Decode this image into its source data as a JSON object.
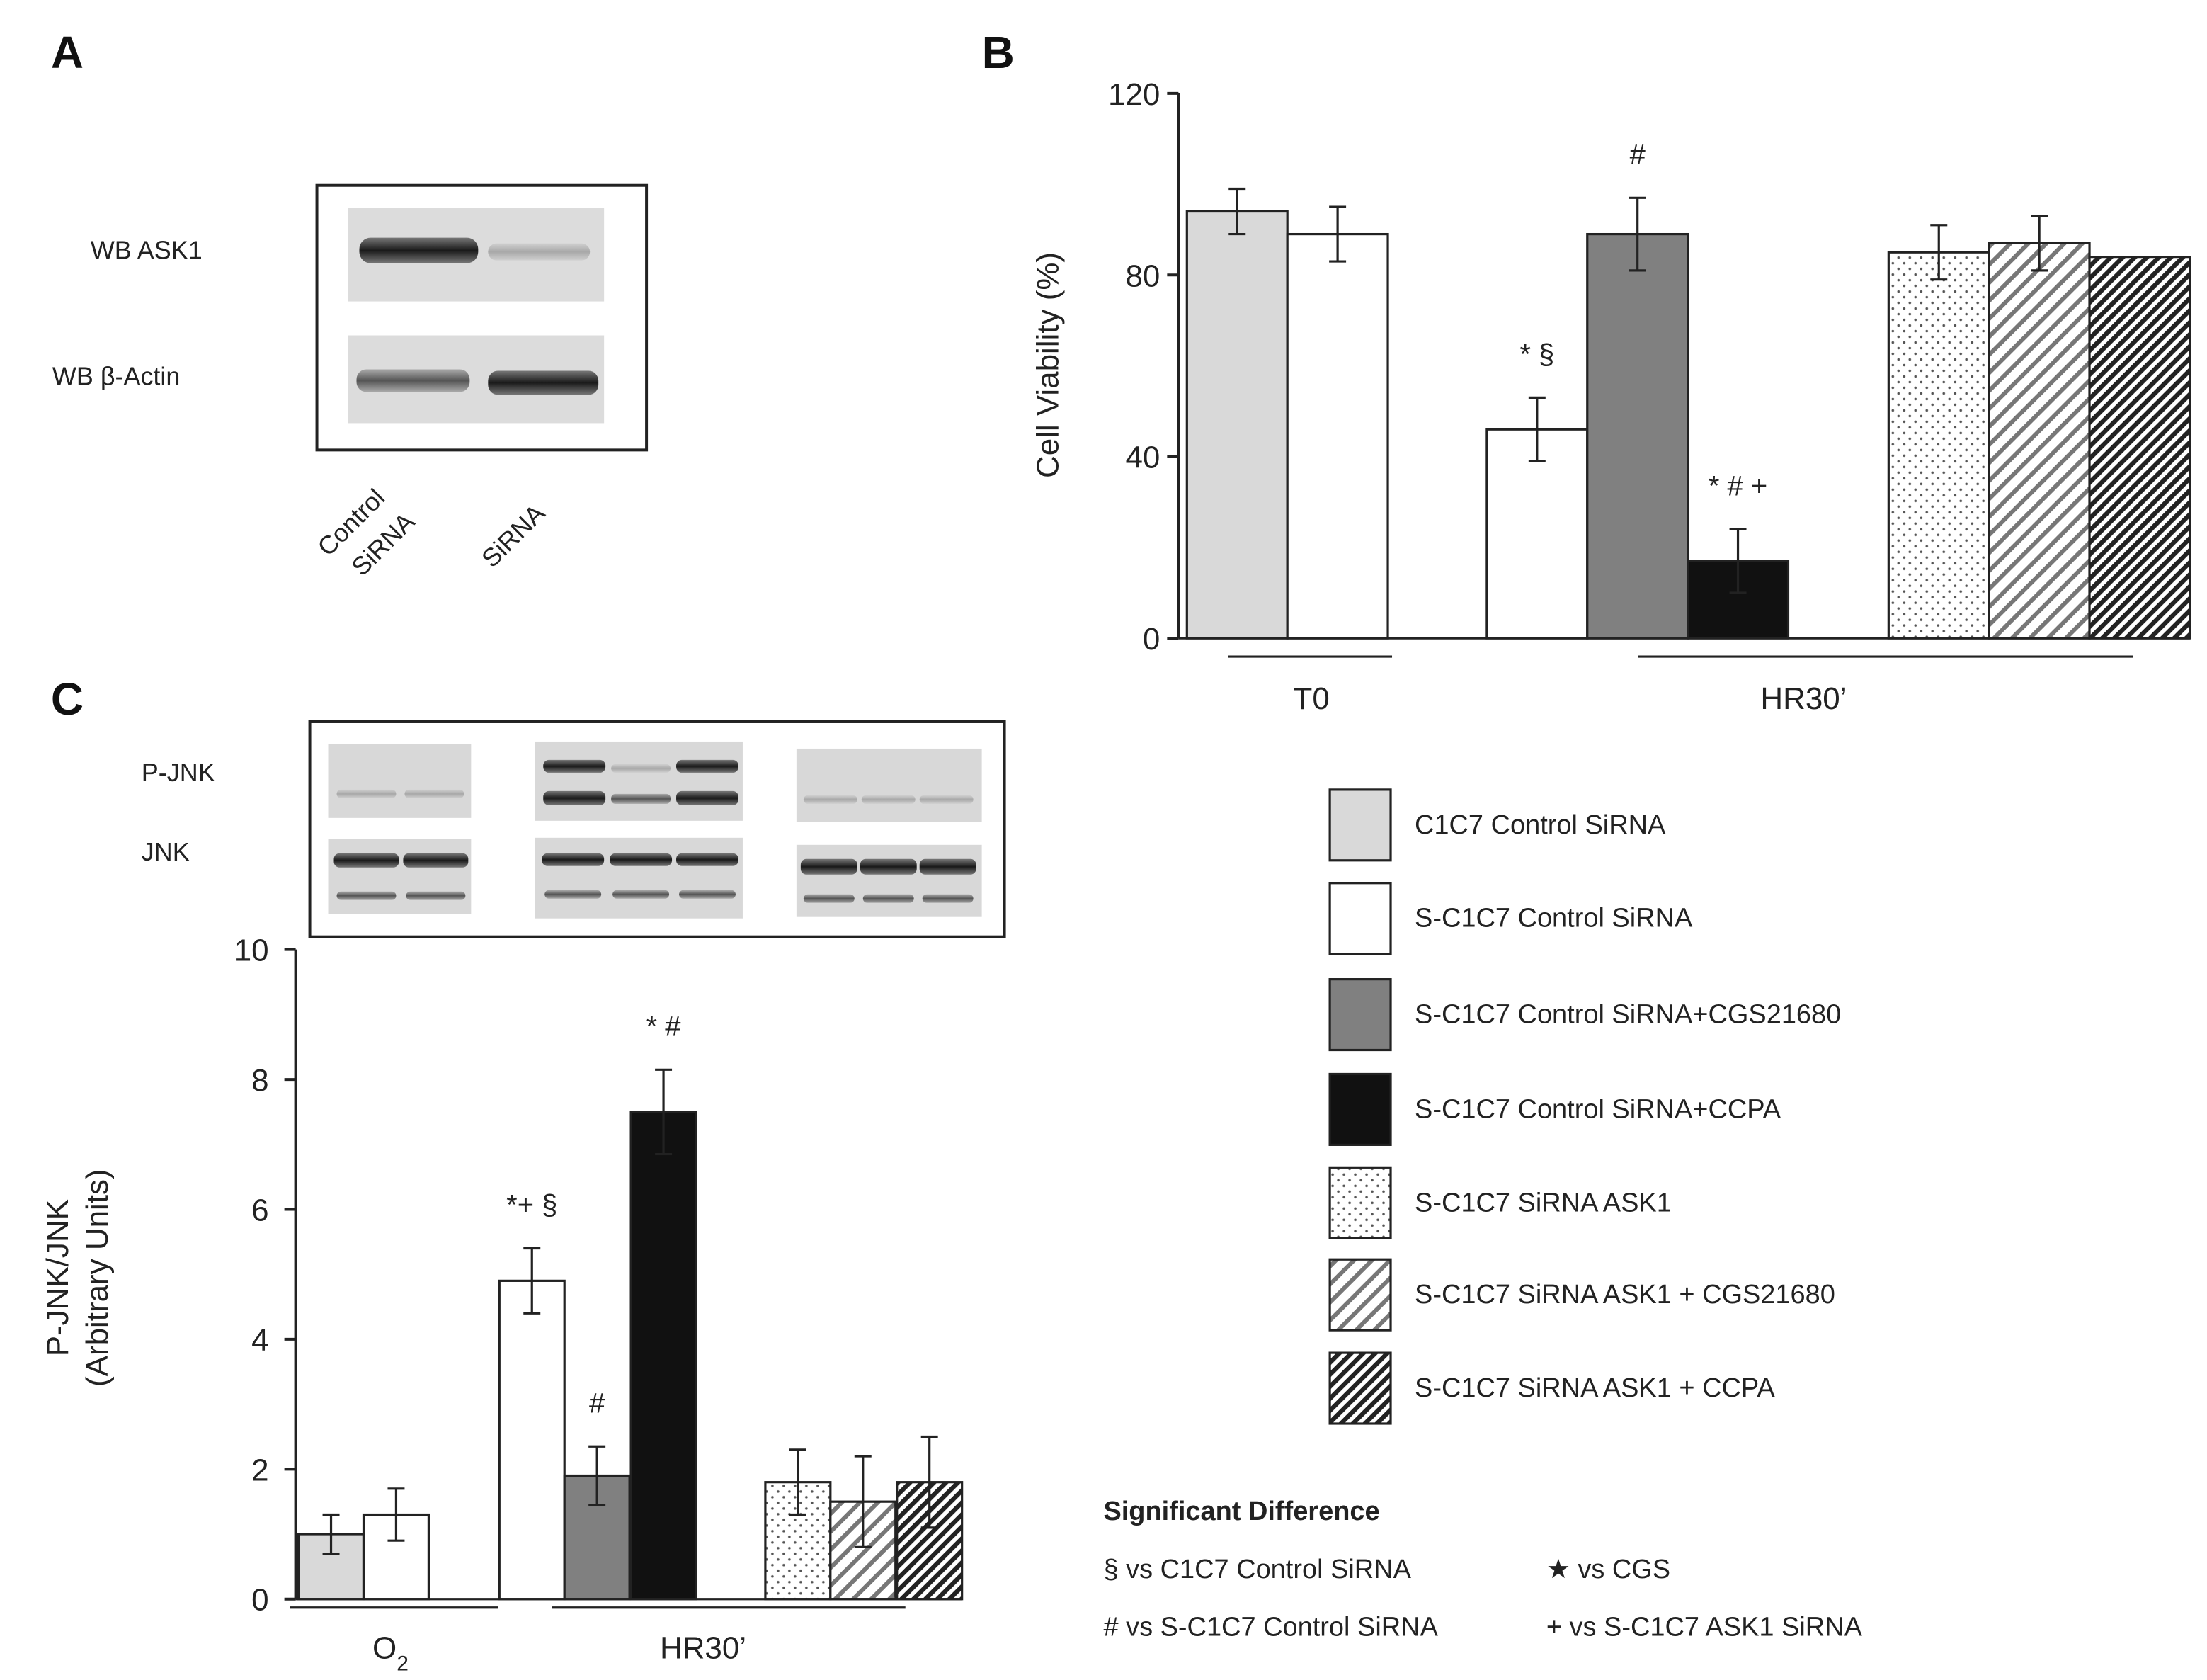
{
  "panels": {
    "a": "A",
    "b": "B",
    "c": "C"
  },
  "panel_a": {
    "row_labels": [
      "WB ASK1",
      "WB β-Actin"
    ],
    "lane_labels": [
      [
        "Control",
        "SiRNA"
      ],
      [
        "SiRNA"
      ]
    ]
  },
  "panel_c_blot": {
    "row_labels": [
      "P-JNK",
      "JNK"
    ]
  },
  "legend": [
    {
      "label": "C1C7  Control  SiRNA",
      "fill": "#d9d9d9",
      "pattern": "solid"
    },
    {
      "label": "S-C1C7  Control  SiRNA",
      "fill": "#ffffff",
      "pattern": "solid"
    },
    {
      "label": "S-C1C7  Control  SiRNA+CGS21680",
      "fill": "#808080",
      "pattern": "solid"
    },
    {
      "label": "S-C1C7  Control  SiRNA+CCPA",
      "fill": "#111111",
      "pattern": "solid"
    },
    {
      "label": "S-C1C7  SiRNA  ASK1",
      "fill": "#ffffff",
      "pattern": "dots"
    },
    {
      "label": "S-C1C7  SiRNA  ASK1 + CGS21680",
      "fill": "#ffffff",
      "pattern": "light-hatch"
    },
    {
      "label": "S-C1C7  SiRNA  ASK1 + CCPA",
      "fill": "#ffffff",
      "pattern": "dense-hatch"
    }
  ],
  "significance": {
    "title": "Significant Difference",
    "items": [
      "§ vs  C1C7  Control  SiRNA",
      "★ vs  CGS",
      "# vs  S-C1C7  Control  SiRNA",
      "+ vs  S-C1C7  ASK1  SiRNA"
    ]
  },
  "chart_data": [
    {
      "type": "bar",
      "panel": "B",
      "ylabel": "Cell Viability (%)",
      "ylim": [
        0,
        120
      ],
      "yticks": [
        0,
        40,
        80,
        120
      ],
      "groups": [
        {
          "label": "T0",
          "bars": [
            0,
            1
          ]
        },
        {
          "label": "HR30’",
          "bars": [
            2,
            3,
            4,
            5,
            6,
            7
          ]
        }
      ],
      "bars": [
        {
          "style": 0,
          "value": 94,
          "err": 5,
          "annot": ""
        },
        {
          "style": 1,
          "value": 89,
          "err": 6,
          "annot": ""
        },
        {
          "style": 1,
          "value": 46,
          "err": 7,
          "annot": "*  §"
        },
        {
          "style": 2,
          "value": 89,
          "err": 8,
          "annot": "#"
        },
        {
          "style": 3,
          "value": 17,
          "err": 7,
          "annot": "*  #  +"
        },
        {
          "style": 4,
          "value": 85,
          "err": 6,
          "annot": ""
        },
        {
          "style": 5,
          "value": 87,
          "err": 6,
          "annot": ""
        },
        {
          "style": 6,
          "value": 84,
          "err": 0,
          "annot": ""
        }
      ]
    },
    {
      "type": "bar",
      "panel": "C",
      "ylabel": "P-JNK/JNK",
      "ylabel2": "(Arbitrary Units)",
      "ylim": [
        0,
        10
      ],
      "yticks": [
        0,
        2,
        4,
        6,
        8,
        10
      ],
      "groups": [
        {
          "label": "O2",
          "bars": [
            0,
            1
          ]
        },
        {
          "label": "HR30’",
          "bars": [
            2,
            3,
            4,
            5,
            6,
            7
          ]
        }
      ],
      "bars": [
        {
          "style": 0,
          "value": 1.0,
          "err": 0.3,
          "annot": ""
        },
        {
          "style": 1,
          "value": 1.3,
          "err": 0.4,
          "annot": ""
        },
        {
          "style": 1,
          "value": 4.9,
          "err": 0.5,
          "annot": "*+ §"
        },
        {
          "style": 2,
          "value": 1.9,
          "err": 0.45,
          "annot": "#"
        },
        {
          "style": 3,
          "value": 7.5,
          "err": 0.65,
          "annot": "* #"
        },
        {
          "style": 4,
          "value": 1.8,
          "err": 0.5,
          "annot": ""
        },
        {
          "style": 5,
          "value": 1.5,
          "err": 0.7,
          "annot": ""
        },
        {
          "style": 6,
          "value": 1.8,
          "err": 0.7,
          "annot": ""
        }
      ]
    }
  ]
}
